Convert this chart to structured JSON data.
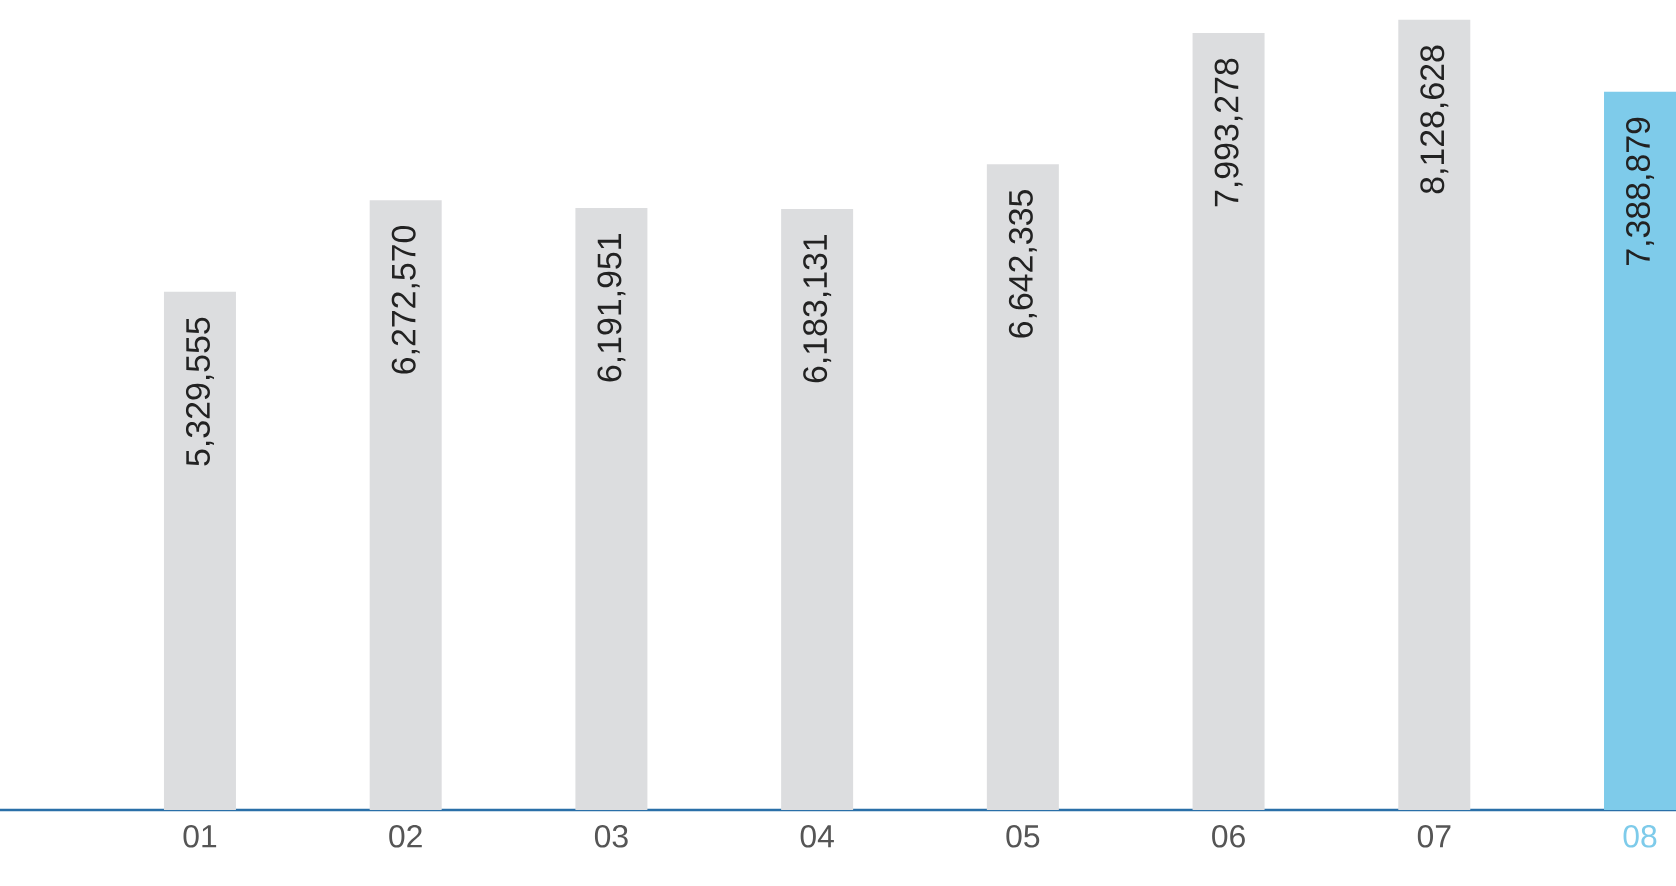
{
  "chart_data": {
    "type": "bar",
    "categories": [
      "01",
      "02",
      "03",
      "04",
      "05",
      "06",
      "07",
      "08"
    ],
    "values": [
      5329555,
      6272570,
      6191951,
      6183131,
      6642335,
      7993278,
      8128628,
      7388879
    ],
    "value_labels": [
      "5,329,555",
      "6,272,570",
      "6,191,951",
      "6,183,131",
      "6,642,335",
      "7,993,278",
      "8,128,628",
      "7,388,879"
    ],
    "colors": [
      "#dcdddf",
      "#dcdddf",
      "#dcdddf",
      "#dcdddf",
      "#dcdddf",
      "#dcdddf",
      "#dcdddf",
      "#7ecbea"
    ],
    "tick_labels": "x",
    "grid": false
  }
}
